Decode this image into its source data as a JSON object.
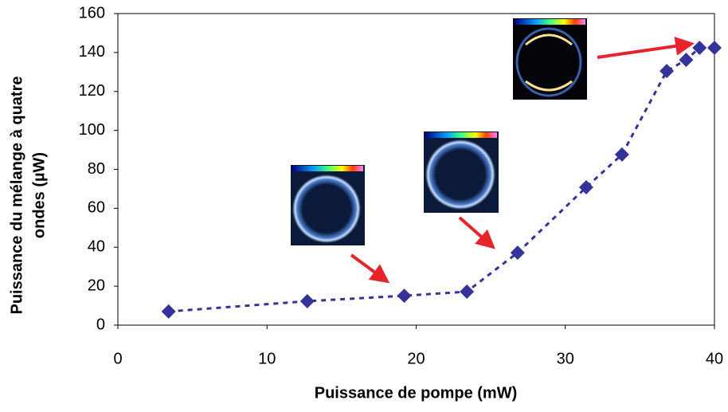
{
  "chart_data": {
    "type": "scatter",
    "xlabel": "Puissance de pompe (mW)",
    "ylabel_lines": [
      "Puissance du mélange à quatre",
      "ondes  (µW)"
    ],
    "x": [
      3.4,
      12.7,
      19.2,
      23.4,
      26.8,
      31.4,
      33.8,
      36.8,
      38.1,
      39.0,
      40.0
    ],
    "series": [
      {
        "color": "#333399",
        "values": [
          7,
          12.3,
          15.1,
          17.2,
          37.2,
          70.8,
          87.6,
          130.5,
          136.2,
          142.4,
          142.4
        ]
      }
    ],
    "trend_line": {
      "color": "#333399",
      "style": "dashed"
    },
    "xlim": [
      0,
      40
    ],
    "xticks": [
      0,
      10,
      20,
      30,
      40
    ],
    "ylim": [
      0,
      160
    ],
    "yticks": [
      0,
      20,
      40,
      60,
      80,
      100,
      120,
      140,
      160
    ]
  }
}
